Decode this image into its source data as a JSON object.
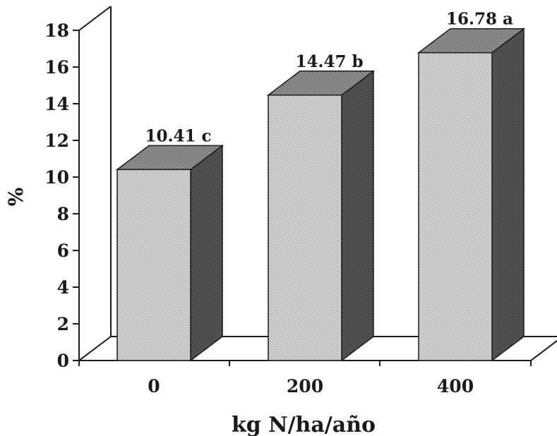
{
  "chart_data": {
    "type": "bar",
    "categories": [
      "0",
      "200",
      "400"
    ],
    "values": [
      10.41,
      14.47,
      16.78
    ],
    "data_labels": [
      "10.41 c",
      "14.47 b",
      "16.78 a"
    ],
    "xlabel": "kg N/ha/año",
    "ylabel": "%",
    "ylim": [
      0,
      18
    ],
    "yticks": [
      0,
      2,
      4,
      6,
      8,
      10,
      12,
      14,
      16,
      18
    ],
    "grid": false,
    "style": "3d",
    "colors": {
      "bar_front": "#cfcfcf",
      "bar_side": "#4a4a4a",
      "bar_top": "#8a8a8a",
      "axis": "#1a1a1a"
    }
  }
}
